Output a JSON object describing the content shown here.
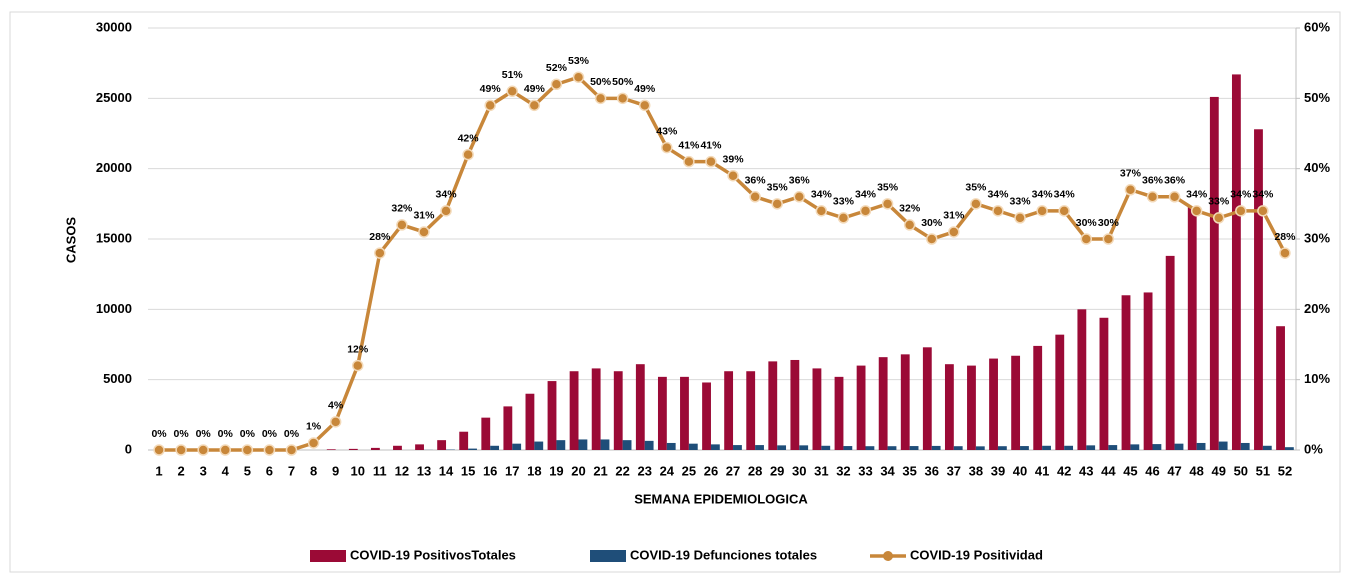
{
  "chart_data": {
    "type": "bar",
    "y_label": "CASOS",
    "x_label": "SEMANA EPIDEMIOLOGICA",
    "categories": [
      "1",
      "2",
      "3",
      "4",
      "5",
      "6",
      "7",
      "8",
      "9",
      "10",
      "11",
      "12",
      "13",
      "14",
      "15",
      "16",
      "17",
      "18",
      "19",
      "20",
      "21",
      "22",
      "23",
      "24",
      "25",
      "26",
      "27",
      "28",
      "29",
      "30",
      "31",
      "32",
      "33",
      "34",
      "35",
      "36",
      "37",
      "38",
      "39",
      "40",
      "41",
      "42",
      "43",
      "44",
      "45",
      "46",
      "47",
      "48",
      "49",
      "50",
      "51",
      "52"
    ],
    "ylim": [
      0,
      30000
    ],
    "yticks": [
      0,
      5000,
      10000,
      15000,
      20000,
      25000,
      30000
    ],
    "y2lim": [
      0,
      60
    ],
    "y2ticks": [
      {
        "value": 0,
        "label": "0%"
      },
      {
        "value": 10,
        "label": "10%"
      },
      {
        "value": 20,
        "label": "20%"
      },
      {
        "value": 30,
        "label": "30%"
      },
      {
        "value": 40,
        "label": "40%"
      },
      {
        "value": 50,
        "label": "50%"
      },
      {
        "value": 60,
        "label": "60%"
      }
    ],
    "grid": true,
    "series": [
      {
        "name": "COVID-19 PositivosTotales",
        "type": "bar",
        "color": "#9b0a36",
        "values": [
          0,
          0,
          0,
          0,
          0,
          0,
          0,
          0,
          50,
          80,
          150,
          300,
          400,
          700,
          1300,
          2300,
          3100,
          4000,
          4900,
          5600,
          5800,
          5600,
          6100,
          5200,
          5200,
          4800,
          5600,
          5600,
          6300,
          6400,
          5800,
          5200,
          6000,
          6600,
          6800,
          7300,
          6100,
          6000,
          6500,
          6700,
          7400,
          8200,
          10000,
          9400,
          11000,
          11200,
          13800,
          17300,
          25100,
          26700,
          22800,
          8800
        ]
      },
      {
        "name": "COVID-19 Defunciones totales",
        "type": "bar",
        "color": "#1f4e79",
        "values": [
          0,
          0,
          0,
          0,
          0,
          0,
          0,
          0,
          0,
          0,
          0,
          0,
          10,
          30,
          100,
          300,
          450,
          600,
          700,
          750,
          750,
          700,
          650,
          500,
          450,
          400,
          350,
          350,
          330,
          330,
          300,
          280,
          270,
          270,
          280,
          290,
          270,
          260,
          270,
          280,
          300,
          300,
          330,
          350,
          400,
          420,
          450,
          500,
          600,
          500,
          300,
          200
        ]
      },
      {
        "name": "COVID-19 Positividad",
        "type": "line",
        "axis": "y2",
        "color": "#c8873a",
        "values": [
          0,
          0,
          0,
          0,
          0,
          0,
          0,
          1,
          4,
          12,
          28,
          32,
          31,
          34,
          42,
          49,
          51,
          49,
          52,
          53,
          50,
          50,
          49,
          43,
          41,
          41,
          39,
          36,
          35,
          36,
          34,
          33,
          34,
          35,
          32,
          30,
          31,
          35,
          34,
          33,
          34,
          34,
          30,
          30,
          37,
          36,
          36,
          34,
          33,
          34,
          34,
          28
        ],
        "value_labels": [
          "0%",
          "0%",
          "0%",
          "0%",
          "0%",
          "0%",
          "0%",
          "1%",
          "4%",
          "12%",
          "28%",
          "32%",
          "31%",
          "34%",
          "42%",
          "49%",
          "51%",
          "49%",
          "52%",
          "53%",
          "50%",
          "50%",
          "49%",
          "43%",
          "41%",
          "41%",
          "39%",
          "36%",
          "35%",
          "36%",
          "34%",
          "33%",
          "34%",
          "35%",
          "32%",
          "30%",
          "31%",
          "35%",
          "34%",
          "33%",
          "34%",
          "34%",
          "30%",
          "30%",
          "37%",
          "36%",
          "36%",
          "34%",
          "33%",
          "34%",
          "34%",
          "28%"
        ]
      }
    ]
  }
}
